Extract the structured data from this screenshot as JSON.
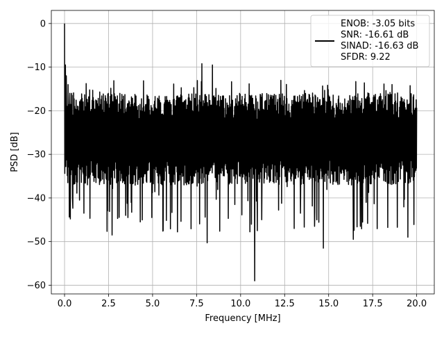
{
  "chart_data": {
    "type": "line",
    "title": "",
    "xlabel": "Frequency [MHz]",
    "ylabel": "PSD [dB]",
    "xlim": [
      -0.75,
      21.0
    ],
    "ylim": [
      -62,
      3
    ],
    "x_ticks": [
      0.0,
      2.5,
      5.0,
      7.5,
      10.0,
      12.5,
      15.0,
      17.5,
      20.0
    ],
    "x_tick_labels": [
      "0.0",
      "2.5",
      "5.0",
      "7.5",
      "10.0",
      "12.5",
      "15.0",
      "17.5",
      "20.0"
    ],
    "y_ticks": [
      0,
      -10,
      -20,
      -30,
      -40,
      -50,
      -60
    ],
    "y_tick_labels": [
      "0",
      "−10",
      "−20",
      "−30",
      "−40",
      "−50",
      "−60"
    ],
    "grid": true,
    "legend_position": "top-right",
    "legend_entries": [
      "ENOB: -3.05 bits",
      "SNR: -16.61 dB",
      "SINAD: -16.63 dB",
      "SFDR: 9.22"
    ],
    "series": [
      {
        "color": "#000000",
        "x_start": 0.0,
        "x_end": 20.0,
        "noise_floor_range": [
          -31,
          -16
        ],
        "min_dip_range": [
          -48,
          -34
        ],
        "notable_points": [
          {
            "x": 0.0,
            "y": 0.0
          },
          {
            "x": 0.05,
            "y": -9.5
          },
          {
            "x": 0.1,
            "y": -12.0
          },
          {
            "x": 0.2,
            "y": -14.0
          },
          {
            "x": 0.3,
            "y": -16.0
          },
          {
            "x": 0.45,
            "y": -40.0
          },
          {
            "x": 0.85,
            "y": -40.5
          },
          {
            "x": 1.1,
            "y": -43.5
          },
          {
            "x": 2.7,
            "y": -48.5
          },
          {
            "x": 3.6,
            "y": -44.5
          },
          {
            "x": 4.3,
            "y": -45.5
          },
          {
            "x": 5.6,
            "y": -47.5
          },
          {
            "x": 7.8,
            "y": -9.2
          },
          {
            "x": 8.1,
            "y": -50.3
          },
          {
            "x": 8.4,
            "y": -9.5
          },
          {
            "x": 10.8,
            "y": -59.0
          },
          {
            "x": 10.95,
            "y": -47.5
          },
          {
            "x": 11.2,
            "y": -45.0
          },
          {
            "x": 13.4,
            "y": -43.5
          },
          {
            "x": 14.2,
            "y": -46.5
          },
          {
            "x": 14.7,
            "y": -51.5
          },
          {
            "x": 16.4,
            "y": -49.5
          },
          {
            "x": 16.8,
            "y": -46.5
          },
          {
            "x": 19.5,
            "y": -49.0
          }
        ]
      }
    ]
  }
}
